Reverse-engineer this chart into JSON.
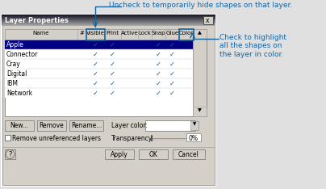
{
  "title_annotation": "Uncheck to temporarily hide shapes on that layer.",
  "right_annotation": "Check to highlight\nall the shapes on\nthe layer in color.",
  "dialog_title": "Layer Properties",
  "col_headers": [
    "Name",
    "#",
    "Visible",
    "Print",
    "Active",
    "Lock",
    "Snap",
    "Glue",
    "Color"
  ],
  "rows": [
    [
      "Apple",
      "",
      "✓",
      "✓",
      "",
      "",
      "✓",
      "✓",
      ""
    ],
    [
      "Connector",
      "",
      "✓",
      "✓",
      "",
      "",
      "✓",
      "✓",
      ""
    ],
    [
      "Cray",
      "",
      "✓",
      "✓",
      "",
      "",
      "✓",
      "✓",
      ""
    ],
    [
      "Digital",
      "",
      "✓",
      "✓",
      "",
      "",
      "✓",
      "✓",
      ""
    ],
    [
      "IBM",
      "",
      "✓",
      "✓",
      "",
      "",
      "✓",
      "✓",
      ""
    ],
    [
      "Network",
      "",
      "✓",
      "✓",
      "",
      "",
      "✓",
      "✓",
      ""
    ]
  ],
  "dialog_bg": "#d4d0c8",
  "table_bg": "#ffffff",
  "selected_row_bg": "#000080",
  "selected_row_fg": "#ffffff",
  "annotation_color": "#1464a0",
  "check_color": "#1464a0",
  "layer_color_label": "Layer color:",
  "transparency_label": "Transparency:",
  "remove_unref_label": "Remove unreferenced layers",
  "figsize": [
    4.04,
    2.34
  ],
  "dpi": 100
}
